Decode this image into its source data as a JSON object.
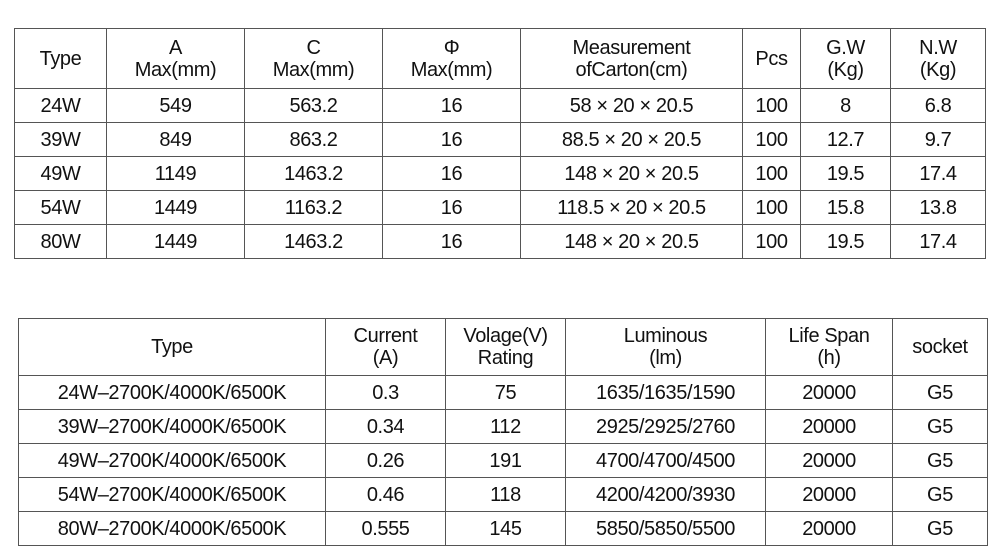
{
  "dimensions_table": {
    "headers": [
      [
        "Type"
      ],
      [
        "A",
        "Max(mm)"
      ],
      [
        "C",
        "Max(mm)"
      ],
      [
        "Φ",
        "Max(mm)"
      ],
      [
        "Measurement",
        "ofCarton(cm)"
      ],
      [
        "Pcs"
      ],
      [
        "G.W",
        "(Kg)"
      ],
      [
        "N.W",
        "(Kg)"
      ]
    ],
    "rows": [
      [
        "24W",
        "549",
        "563.2",
        "16",
        "58 × 20 × 20.5",
        "100",
        "8",
        "6.8"
      ],
      [
        "39W",
        "849",
        "863.2",
        "16",
        "88.5 × 20 × 20.5",
        "100",
        "12.7",
        "9.7"
      ],
      [
        "49W",
        "1149",
        "1463.2",
        "16",
        "148 × 20 × 20.5",
        "100",
        "19.5",
        "17.4"
      ],
      [
        "54W",
        "1449",
        "1163.2",
        "16",
        "118.5 × 20 × 20.5",
        "100",
        "15.8",
        "13.8"
      ],
      [
        "80W",
        "1449",
        "1463.2",
        "16",
        "148 × 20 × 20.5",
        "100",
        "19.5",
        "17.4"
      ]
    ]
  },
  "electrical_table": {
    "headers": [
      [
        "Type"
      ],
      [
        "Current",
        "(A)"
      ],
      [
        "Volage(V)",
        "Rating"
      ],
      [
        "Luminous",
        "(lm)"
      ],
      [
        "Life Span",
        "(h)"
      ],
      [
        "socket"
      ]
    ],
    "rows": [
      [
        "24W–2700K/4000K/6500K",
        "0.3",
        "75",
        "1635/1635/1590",
        "20000",
        "G5"
      ],
      [
        "39W–2700K/4000K/6500K",
        "0.34",
        "112",
        "2925/2925/2760",
        "20000",
        "G5"
      ],
      [
        "49W–2700K/4000K/6500K",
        "0.26",
        "191",
        "4700/4700/4500",
        "20000",
        "G5"
      ],
      [
        "54W–2700K/4000K/6500K",
        "0.46",
        "118",
        "4200/4200/3930",
        "20000",
        "G5"
      ],
      [
        "80W–2700K/4000K/6500K",
        "0.555",
        "145",
        "5850/5850/5500",
        "20000",
        "G5"
      ]
    ]
  }
}
